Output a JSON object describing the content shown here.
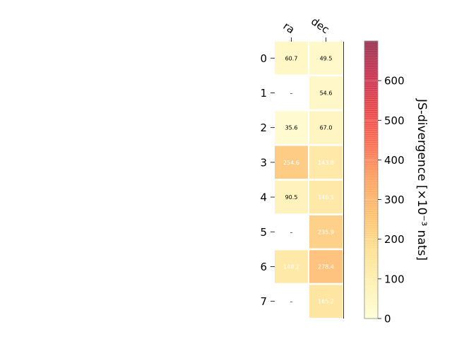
{
  "chart_data": {
    "type": "heatmap",
    "columns": [
      "ra",
      "dec"
    ],
    "rows": [
      "0",
      "1",
      "2",
      "3",
      "4",
      "5",
      "6",
      "7"
    ],
    "values": [
      [
        60.7,
        49.5
      ],
      [
        null,
        54.6
      ],
      [
        35.6,
        67.0
      ],
      [
        254.6,
        143.8
      ],
      [
        90.5,
        146.5
      ],
      [
        null,
        235.9
      ],
      [
        148.2,
        278.4
      ],
      [
        null,
        165.2
      ]
    ],
    "value_labels": [
      [
        "60.7",
        "49.5"
      ],
      [
        "–",
        "54.6"
      ],
      [
        "35.6",
        "67.0"
      ],
      [
        "254.6",
        "143.8"
      ],
      [
        "90.5",
        "146.5"
      ],
      [
        "–",
        "235.9"
      ],
      [
        "148.2",
        "278.4"
      ],
      [
        "–",
        "165.2"
      ]
    ],
    "colorbar": {
      "label": "JS-divergence [×10⁻³ nats]",
      "min": 0,
      "max": 700,
      "ticks": [
        0,
        100,
        200,
        300,
        400,
        500,
        600
      ],
      "colormap": "YlOrRd"
    }
  }
}
